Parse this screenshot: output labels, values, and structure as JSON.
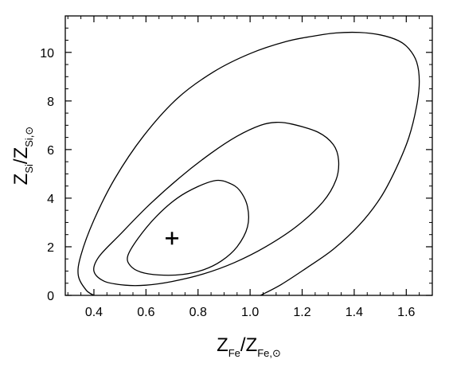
{
  "chart_data": {
    "type": "line",
    "title": "",
    "xlabel": {
      "main": "Z",
      "sub1": "Fe",
      "sep": "/Z",
      "sub2": "Fe,⊙"
    },
    "ylabel": {
      "main": "Z",
      "sub1": "Si",
      "sep": "/Z",
      "sub2": "Si,⊙"
    },
    "xlim": [
      0.29,
      1.7
    ],
    "ylim": [
      0,
      11.5
    ],
    "xticks": [
      0.4,
      0.6,
      0.8,
      1.0,
      1.2,
      1.4,
      1.6
    ],
    "xtick_labels": [
      "0.4",
      "0.6",
      "0.8",
      "1.0",
      "1.2",
      "1.4",
      "1.6"
    ],
    "yticks": [
      0,
      2,
      4,
      6,
      8,
      10
    ],
    "ytick_labels": [
      "0",
      "2",
      "4",
      "6",
      "8",
      "10"
    ],
    "grid": false,
    "best_fit": {
      "x": 0.7,
      "y": 2.35,
      "marker": "+"
    },
    "series": [
      {
        "closed": true,
        "points": [
          [
            0.54,
            1.22
          ],
          [
            0.58,
            0.96
          ],
          [
            0.65,
            0.84
          ],
          [
            0.74,
            0.86
          ],
          [
            0.82,
            1.05
          ],
          [
            0.89,
            1.42
          ],
          [
            0.95,
            2.0
          ],
          [
            0.99,
            2.82
          ],
          [
            0.99,
            3.65
          ],
          [
            0.96,
            4.32
          ],
          [
            0.92,
            4.62
          ],
          [
            0.87,
            4.73
          ],
          [
            0.8,
            4.48
          ],
          [
            0.72,
            4.0
          ],
          [
            0.64,
            3.25
          ],
          [
            0.57,
            2.35
          ],
          [
            0.53,
            1.62
          ]
        ]
      },
      {
        "closed": true,
        "points": [
          [
            0.4,
            1.0
          ],
          [
            0.44,
            0.58
          ],
          [
            0.52,
            0.42
          ],
          [
            0.6,
            0.42
          ],
          [
            0.7,
            0.57
          ],
          [
            0.82,
            0.88
          ],
          [
            0.94,
            1.35
          ],
          [
            1.06,
            2.0
          ],
          [
            1.18,
            2.85
          ],
          [
            1.28,
            3.85
          ],
          [
            1.33,
            4.75
          ],
          [
            1.34,
            5.55
          ],
          [
            1.32,
            6.2
          ],
          [
            1.26,
            6.72
          ],
          [
            1.16,
            7.05
          ],
          [
            1.1,
            7.12
          ],
          [
            1.04,
            7.0
          ],
          [
            0.95,
            6.55
          ],
          [
            0.85,
            5.85
          ],
          [
            0.73,
            4.85
          ],
          [
            0.61,
            3.7
          ],
          [
            0.5,
            2.5
          ],
          [
            0.42,
            1.6
          ]
        ]
      },
      {
        "closed": false,
        "points": [
          [
            1.04,
            0.0
          ],
          [
            1.12,
            0.45
          ],
          [
            1.22,
            1.15
          ],
          [
            1.32,
            1.9
          ],
          [
            1.42,
            2.9
          ],
          [
            1.5,
            4.0
          ],
          [
            1.56,
            5.2
          ],
          [
            1.61,
            6.5
          ],
          [
            1.64,
            7.8
          ],
          [
            1.65,
            8.8
          ],
          [
            1.64,
            9.6
          ],
          [
            1.61,
            10.15
          ],
          [
            1.57,
            10.48
          ],
          [
            1.5,
            10.72
          ],
          [
            1.42,
            10.82
          ],
          [
            1.33,
            10.8
          ],
          [
            1.25,
            10.68
          ],
          [
            1.14,
            10.45
          ],
          [
            1.0,
            9.95
          ],
          [
            0.86,
            9.2
          ],
          [
            0.72,
            8.1
          ],
          [
            0.59,
            6.55
          ],
          [
            0.48,
            4.8
          ],
          [
            0.4,
            3.1
          ],
          [
            0.35,
            1.65
          ],
          [
            0.34,
            0.82
          ],
          [
            0.37,
            0.22
          ],
          [
            0.4,
            0.0
          ]
        ]
      }
    ]
  }
}
